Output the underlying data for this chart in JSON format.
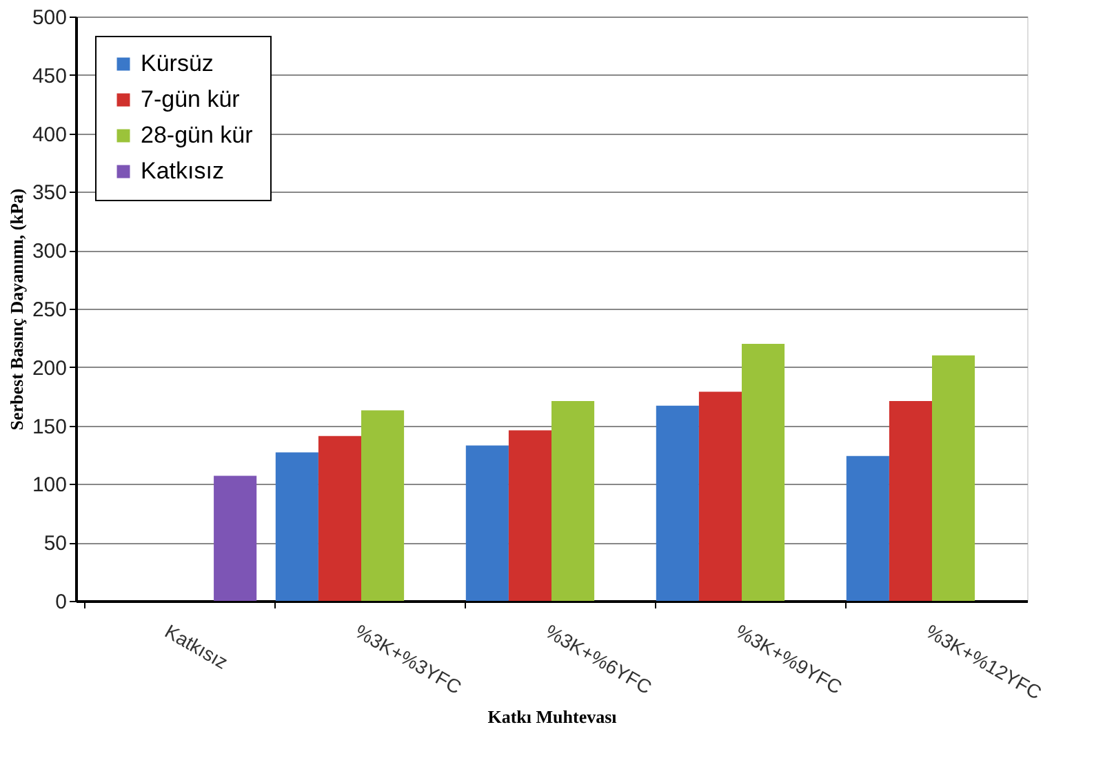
{
  "chart_data": {
    "type": "bar",
    "xlabel": "Katkı Muhtevası",
    "ylabel": "Serbest Basınç Dayanımı, (kPa)",
    "categories": [
      "Katkısız",
      "%3K+%3YFC",
      "%3K+%6YFC",
      "%3K+%9YFC",
      "%3K+%12YFC"
    ],
    "series": [
      {
        "name": "Kürsüz",
        "color": "#3a78c9",
        "values": [
          null,
          127,
          133,
          167,
          124
        ]
      },
      {
        "name": "7-gün kür",
        "color": "#d0312d",
        "values": [
          null,
          141,
          146,
          179,
          171
        ]
      },
      {
        "name": "28-gün kür",
        "color": "#9bc33a",
        "values": [
          null,
          163,
          171,
          220,
          210
        ]
      },
      {
        "name": "Katkısız",
        "color": "#7d55b5",
        "values": [
          107,
          null,
          null,
          null,
          null
        ]
      }
    ],
    "ylim": [
      0,
      500
    ],
    "yticks": [
      0,
      50,
      100,
      150,
      200,
      250,
      300,
      350,
      400,
      450,
      500
    ],
    "grid": "y",
    "legend": "top left"
  }
}
